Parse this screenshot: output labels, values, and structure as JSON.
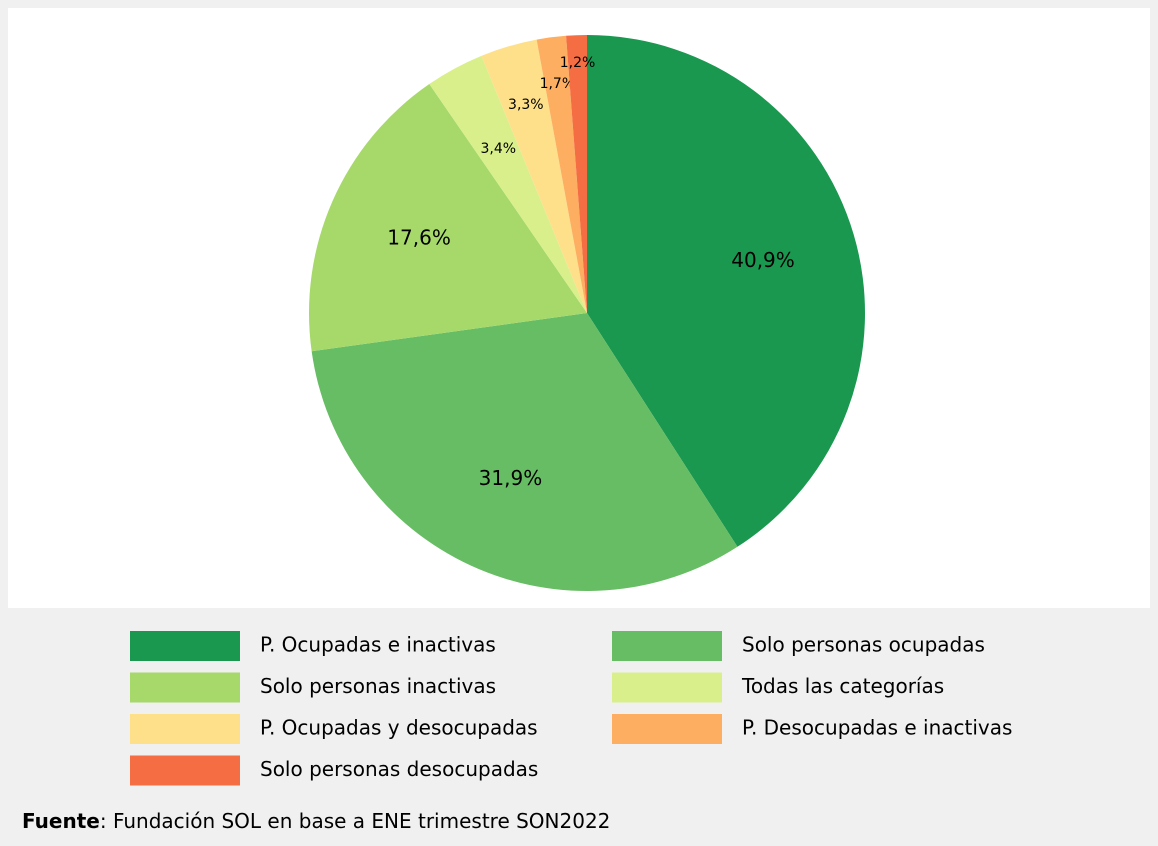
{
  "chart_data": {
    "type": "pie",
    "categories": [
      "P. Ocupadas e inactivas",
      "Solo personas ocupadas",
      "Solo personas inactivas",
      "Todas las categorías",
      "P. Ocupadas y desocupadas",
      "P. Desocupadas e inactivas",
      "Solo personas desocupadas"
    ],
    "values": [
      40.9,
      31.9,
      17.6,
      3.4,
      3.3,
      1.7,
      1.2
    ],
    "value_labels": [
      "40,9%",
      "31,9%",
      "17,6%",
      "3,4%",
      "3,3%",
      "1,7%",
      "1,2%"
    ],
    "colors": [
      "#1a9850",
      "#66bd63",
      "#a6d96a",
      "#d9ef8b",
      "#fee08b",
      "#fdae61",
      "#f46d43"
    ],
    "source_label": "Fuente",
    "source_text": ": Fundación SOL en base a ENE trimestre SON2022"
  }
}
